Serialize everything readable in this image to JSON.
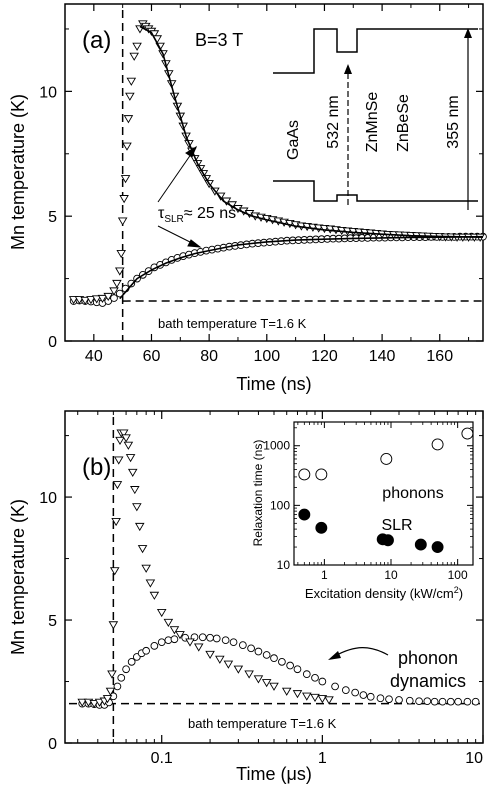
{
  "chart_data": [
    {
      "type": "scatter",
      "panel_label": "(a)",
      "field_label": "B=3 T",
      "xlabel": "Time (ns)",
      "ylabel": "Mn temperature (K)",
      "xlim": [
        30,
        175
      ],
      "ylim": [
        0,
        13.5
      ],
      "xticks": [
        40,
        60,
        80,
        100,
        120,
        140,
        160
      ],
      "yticks": [
        0,
        5,
        10
      ],
      "series": [
        {
          "marker": "triangle-down",
          "x": [
            33,
            35,
            37,
            39,
            41,
            43,
            45,
            47,
            48,
            49,
            49.5,
            50,
            50.5,
            51,
            51.5,
            52,
            52.5,
            53,
            54,
            55,
            56,
            57,
            58,
            59,
            60,
            61,
            62,
            63,
            64,
            65,
            66,
            67,
            68,
            69,
            70,
            71,
            72,
            73,
            74,
            75,
            76,
            77,
            78,
            79,
            80,
            82,
            84,
            86,
            88,
            90,
            92,
            94,
            96,
            98,
            100,
            102,
            104,
            106,
            108,
            110,
            112,
            114,
            116,
            118,
            120,
            122,
            124,
            126,
            128,
            130,
            132,
            134,
            136,
            138,
            140,
            142,
            144,
            146,
            148,
            150,
            152,
            154,
            156,
            158,
            160,
            162,
            164,
            166,
            168,
            170,
            172,
            174
          ],
          "y": [
            1.65,
            1.65,
            1.62,
            1.65,
            1.68,
            1.7,
            1.78,
            2.0,
            2.3,
            2.8,
            3.5,
            4.8,
            5.7,
            6.5,
            7.8,
            8.9,
            9.8,
            10.4,
            11.4,
            11.8,
            12.5,
            12.7,
            12.6,
            12.5,
            12.4,
            12.3,
            12.1,
            11.8,
            11.5,
            11.1,
            10.7,
            10.3,
            9.8,
            9.4,
            9.0,
            8.6,
            8.2,
            7.9,
            7.6,
            7.3,
            7.1,
            6.9,
            6.7,
            6.5,
            6.3,
            6.0,
            5.8,
            5.6,
            5.45,
            5.3,
            5.2,
            5.1,
            5.0,
            4.95,
            4.9,
            4.85,
            4.8,
            4.75,
            4.7,
            4.65,
            4.6,
            4.58,
            4.55,
            4.52,
            4.5,
            4.48,
            4.45,
            4.42,
            4.4,
            4.38,
            4.36,
            4.34,
            4.32,
            4.3,
            4.28,
            4.26,
            4.25,
            4.24,
            4.23,
            4.22,
            4.21,
            4.2,
            4.19,
            4.18,
            4.17,
            4.16,
            4.16,
            4.15,
            4.15,
            4.15,
            4.15,
            4.15
          ]
        },
        {
          "marker": "circle",
          "x": [
            33,
            35,
            37,
            39,
            41,
            43,
            45,
            47,
            49,
            51,
            53,
            55,
            57,
            59,
            61,
            63,
            65,
            67,
            69,
            71,
            73,
            75,
            77,
            79,
            81,
            83,
            85,
            87,
            89,
            91,
            93,
            95,
            97,
            99,
            101,
            103,
            105,
            107,
            109,
            111,
            113,
            115,
            117,
            119,
            121,
            123,
            125,
            127,
            129,
            131,
            133,
            135,
            137,
            139,
            141,
            143,
            145,
            147,
            149,
            151,
            153,
            155,
            157,
            159,
            161,
            163,
            165,
            167,
            169,
            171,
            173,
            175
          ],
          "y": [
            1.6,
            1.62,
            1.6,
            1.58,
            1.55,
            1.52,
            1.6,
            1.72,
            1.9,
            2.1,
            2.3,
            2.5,
            2.65,
            2.8,
            2.95,
            3.05,
            3.15,
            3.25,
            3.33,
            3.4,
            3.46,
            3.52,
            3.57,
            3.62,
            3.66,
            3.7,
            3.74,
            3.78,
            3.81,
            3.84,
            3.87,
            3.9,
            3.92,
            3.94,
            3.96,
            3.98,
            4.0,
            4.02,
            4.03,
            4.04,
            4.05,
            4.06,
            4.07,
            4.08,
            4.09,
            4.1,
            4.1,
            4.11,
            4.12,
            4.12,
            4.13,
            4.13,
            4.14,
            4.14,
            4.14,
            4.15,
            4.15,
            4.15,
            4.16,
            4.16,
            4.16,
            4.16,
            4.17,
            4.17,
            4.17,
            4.17,
            4.17,
            4.18,
            4.18,
            4.18,
            4.18,
            4.18
          ]
        }
      ],
      "fits": [
        {
          "x": [
            56,
            60,
            64,
            68,
            72,
            76,
            80,
            85,
            90,
            95,
            100,
            110,
            120,
            130,
            140,
            150,
            160,
            170,
            175
          ],
          "y": [
            12.6,
            12.35,
            11.5,
            9.8,
            8.2,
            7.1,
            6.3,
            5.6,
            5.25,
            5.0,
            4.85,
            4.6,
            4.45,
            4.35,
            4.28,
            4.22,
            4.19,
            4.17,
            4.16
          ]
        },
        {
          "x": [
            49,
            55,
            60,
            65,
            70,
            75,
            80,
            90,
            100,
            110,
            120,
            130,
            140,
            150,
            160,
            175
          ],
          "y": [
            1.7,
            2.5,
            2.85,
            3.12,
            3.33,
            3.5,
            3.62,
            3.85,
            3.97,
            4.04,
            4.08,
            4.11,
            4.13,
            4.15,
            4.16,
            4.18
          ]
        }
      ],
      "excitation_line_x": 50,
      "bath_line_y": 1.6,
      "bath_label": "bath temperature T=1.6 K",
      "tau_label": "τ",
      "tau_sub": "SLR",
      "tau_value": "≈ 25 ns",
      "inset_layers": [
        "GaAs",
        "ZnMnSe",
        "ZnBeSe"
      ],
      "inset_wavelengths": [
        "532 nm",
        "355 nm"
      ]
    },
    {
      "type": "scatter",
      "panel_label": "(b)",
      "xlabel_main": "Time (",
      "xlabel_unit": "μs",
      "xlabel_end": ")",
      "ylabel": "Mn temperature (K)",
      "x_scale": "log",
      "xlim": [
        0.025,
        10
      ],
      "ylim": [
        0,
        13.5
      ],
      "xticks": [
        0.1,
        1,
        10
      ],
      "xtick_labels": [
        "0.1",
        "1",
        "10"
      ],
      "yticks": [
        0,
        5,
        10
      ],
      "series": [
        {
          "marker": "triangle-down",
          "x": [
            0.032,
            0.035,
            0.038,
            0.041,
            0.044,
            0.046,
            0.048,
            0.049,
            0.05,
            0.051,
            0.052,
            0.053,
            0.054,
            0.055,
            0.056,
            0.058,
            0.06,
            0.062,
            0.064,
            0.066,
            0.068,
            0.07,
            0.073,
            0.076,
            0.08,
            0.085,
            0.09,
            0.1,
            0.11,
            0.12,
            0.13,
            0.15,
            0.17,
            0.2,
            0.23,
            0.26,
            0.3,
            0.35,
            0.4,
            0.45,
            0.5,
            0.6,
            0.7,
            0.8,
            0.9,
            1.0,
            1.1
          ],
          "y": [
            1.65,
            1.65,
            1.6,
            1.65,
            1.7,
            1.8,
            2.1,
            2.8,
            4.8,
            7.0,
            9.0,
            10.5,
            11.5,
            12.3,
            12.6,
            12.6,
            12.4,
            12.1,
            11.6,
            11.0,
            10.3,
            9.6,
            8.8,
            7.9,
            7.1,
            6.5,
            6.0,
            5.3,
            4.9,
            4.6,
            4.4,
            4.1,
            3.9,
            3.6,
            3.4,
            3.2,
            3.0,
            2.8,
            2.6,
            2.45,
            2.3,
            2.1,
            2.0,
            1.9,
            1.85,
            1.8,
            1.75
          ]
        },
        {
          "marker": "circle",
          "x": [
            0.032,
            0.035,
            0.038,
            0.041,
            0.044,
            0.047,
            0.05,
            0.053,
            0.056,
            0.06,
            0.065,
            0.07,
            0.075,
            0.08,
            0.09,
            0.1,
            0.11,
            0.12,
            0.14,
            0.16,
            0.18,
            0.2,
            0.22,
            0.25,
            0.28,
            0.32,
            0.36,
            0.4,
            0.45,
            0.5,
            0.56,
            0.63,
            0.7,
            0.8,
            0.9,
            1.0,
            1.2,
            1.4,
            1.6,
            1.8,
            2.0,
            2.3,
            2.6,
            3.0,
            3.5,
            4.0,
            4.5,
            5.0,
            5.6,
            6.3,
            7.0,
            8.0,
            9.0
          ],
          "y": [
            1.6,
            1.6,
            1.58,
            1.55,
            1.55,
            1.65,
            1.9,
            2.3,
            2.65,
            3.0,
            3.3,
            3.5,
            3.65,
            3.75,
            3.95,
            4.1,
            4.18,
            4.22,
            4.28,
            4.3,
            4.3,
            4.28,
            4.25,
            4.18,
            4.1,
            3.98,
            3.85,
            3.72,
            3.58,
            3.45,
            3.3,
            3.15,
            3.0,
            2.8,
            2.65,
            2.5,
            2.3,
            2.15,
            2.05,
            1.95,
            1.88,
            1.82,
            1.78,
            1.75,
            1.72,
            1.7,
            1.7,
            1.68,
            1.68,
            1.68,
            1.68,
            1.68,
            1.68
          ]
        }
      ],
      "excitation_line_x": 0.05,
      "bath_line_y": 1.6,
      "bath_label": "bath temperature T=1.6 K",
      "annotation_lines": [
        "phonon",
        "dynamics"
      ]
    },
    {
      "type": "scatter",
      "x_scale": "log",
      "y_scale": "log",
      "xlabel": "Excitation density (kW/cm",
      "xlabel_sup": "2",
      "xlabel_end": ")",
      "ylabel": "Relaxation time (ns)",
      "xlim": [
        0.35,
        170
      ],
      "ylim": [
        10,
        2500
      ],
      "xticks": [
        1,
        10,
        100
      ],
      "xtick_labels": [
        "1",
        "10",
        "100"
      ],
      "yticks": [
        10,
        100,
        1000
      ],
      "ytick_labels": [
        "10",
        "100",
        "1000"
      ],
      "series": [
        {
          "name": "phonons",
          "marker": "open-circle",
          "x": [
            0.5,
            0.9,
            8.5,
            50,
            140
          ],
          "y": [
            330,
            330,
            600,
            1050,
            1600
          ]
        },
        {
          "name": "SLR",
          "marker": "filled-circle",
          "x": [
            0.5,
            0.9,
            7.5,
            9,
            28,
            50
          ],
          "y": [
            70,
            42,
            27,
            26,
            22,
            20
          ]
        }
      ]
    }
  ]
}
